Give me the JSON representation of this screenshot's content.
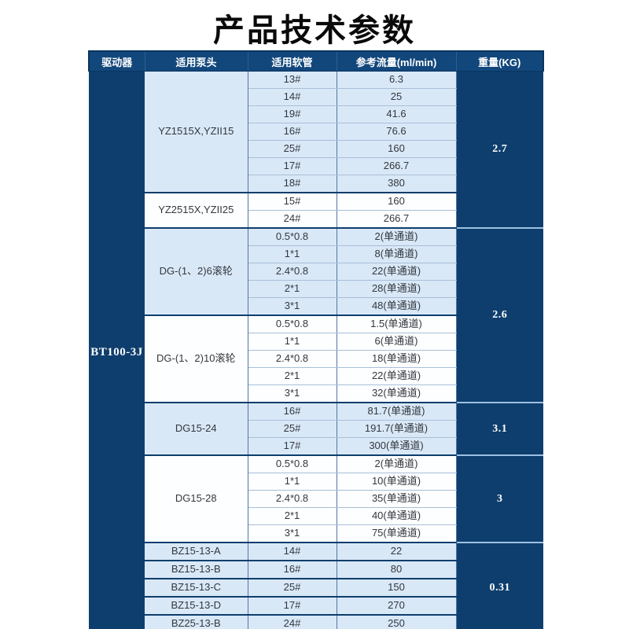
{
  "title": "产品技术参数",
  "colors": {
    "dark_navy": "#0e3e6d",
    "header_navy": "#12477c",
    "light_blue_row": "#d9e8f7",
    "white_row": "#fdfeff",
    "grid_line": "#a8bfd8",
    "section_divider": "#0e3e6d",
    "weight_divider": "#9dc1e4",
    "title_color": "#0a0a0a",
    "text_color": "#33373d"
  },
  "table": {
    "headers": [
      "驱动器",
      "适用泵头",
      "适用软管",
      "参考流量(ml/min)",
      "重量(KG)"
    ],
    "driver": "BT100-3J",
    "groups": [
      {
        "pump_head": "YZ1515X,YZII15",
        "shade": "blue",
        "rows": [
          [
            "13#",
            "6.3"
          ],
          [
            "14#",
            "25"
          ],
          [
            "19#",
            "41.6"
          ],
          [
            "16#",
            "76.6"
          ],
          [
            "25#",
            "160"
          ],
          [
            "17#",
            "266.7"
          ],
          [
            "18#",
            "380"
          ]
        ]
      },
      {
        "pump_head": "YZ2515X,YZII25",
        "shade": "white",
        "rows": [
          [
            "15#",
            "160"
          ],
          [
            "24#",
            "266.7"
          ]
        ]
      },
      {
        "pump_head": "DG-(1、2)6滚轮",
        "shade": "blue",
        "rows": [
          [
            "0.5*0.8",
            "2(单通道)"
          ],
          [
            "1*1",
            "8(单通道)"
          ],
          [
            "2.4*0.8",
            "22(单通道)"
          ],
          [
            "2*1",
            "28(单通道)"
          ],
          [
            "3*1",
            "48(单通道)"
          ]
        ]
      },
      {
        "pump_head": "DG-(1、2)10滚轮",
        "shade": "white",
        "rows": [
          [
            "0.5*0.8",
            "1.5(单通道)"
          ],
          [
            "1*1",
            "6(单通道)"
          ],
          [
            "2.4*0.8",
            "18(单通道)"
          ],
          [
            "2*1",
            "22(单通道)"
          ],
          [
            "3*1",
            "32(单通道)"
          ]
        ]
      },
      {
        "pump_head": "DG15-24",
        "shade": "blue",
        "rows": [
          [
            "16#",
            "81.7(单通道)"
          ],
          [
            "25#",
            "191.7(单通道)"
          ],
          [
            "17#",
            "300(单通道)"
          ]
        ]
      },
      {
        "pump_head": "DG15-28",
        "shade": "white",
        "rows": [
          [
            "0.5*0.8",
            "2(单通道)"
          ],
          [
            "1*1",
            "10(单通道)"
          ],
          [
            "2.4*0.8",
            "35(单通道)"
          ],
          [
            "2*1",
            "40(单通道)"
          ],
          [
            "3*1",
            "75(单通道)"
          ]
        ]
      },
      {
        "pump_head": "BZ15-13-A",
        "shade": "blue",
        "rows": [
          [
            "14#",
            "22"
          ]
        ]
      },
      {
        "pump_head": "BZ15-13-B",
        "shade": "blue",
        "rows": [
          [
            "16#",
            "80"
          ]
        ]
      },
      {
        "pump_head": "BZ15-13-C",
        "shade": "blue",
        "rows": [
          [
            "25#",
            "150"
          ]
        ]
      },
      {
        "pump_head": "BZ15-13-D",
        "shade": "blue",
        "rows": [
          [
            "17#",
            "270"
          ]
        ]
      },
      {
        "pump_head": "BZ25-13-B",
        "shade": "blue",
        "rows": [
          [
            "24#",
            "250"
          ]
        ]
      }
    ],
    "weights": [
      {
        "value": "2.7",
        "rows": 9
      },
      {
        "value": "2.6",
        "rows": 10
      },
      {
        "value": "3.1",
        "rows": 3
      },
      {
        "value": "3",
        "rows": 5
      },
      {
        "value": "0.31",
        "rows": 5
      }
    ]
  }
}
